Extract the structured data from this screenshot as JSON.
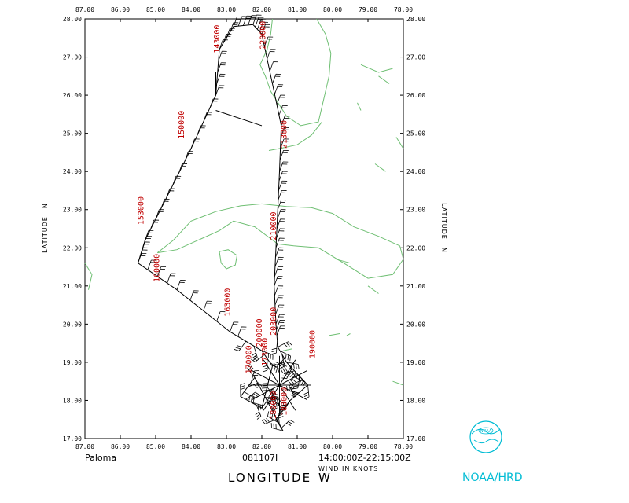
{
  "map": {
    "storm_name": "Paloma",
    "date_code": "081107I",
    "time_range": "14:00:00Z-22:15:00Z",
    "wind_units": "WIND IN KNOTS",
    "x_axis_label": "LONGITUDE",
    "x_axis_hemisphere": "W",
    "y_axis_label": "LATITUDE",
    "y_axis_hemisphere": "N",
    "agency": "NOAA/HRD",
    "logo_text": "NOAA",
    "lon_range": [
      87.0,
      78.0
    ],
    "lat_range": [
      17.0,
      28.0
    ],
    "lon_ticks": [
      "87.00",
      "86.00",
      "85.00",
      "84.00",
      "83.00",
      "82.00",
      "81.00",
      "80.00",
      "79.00",
      "78.00"
    ],
    "lat_ticks": [
      "17.00",
      "18.00",
      "19.00",
      "20.00",
      "21.00",
      "22.00",
      "23.00",
      "24.00",
      "25.00",
      "26.00",
      "27.00",
      "28.00"
    ],
    "coast_color": "#6fbf73",
    "track_color": "#000000",
    "time_label_color": "#c00000",
    "logo_color": "#00bcd4"
  },
  "chart_data": {
    "type": "scatter",
    "title": "",
    "xlabel": "LONGITUDE W",
    "ylabel": "LATITUDE N",
    "xlim": [
      87.0,
      78.0
    ],
    "ylim": [
      17.0,
      28.0
    ],
    "series": [
      {
        "points": [
          [
            82.25,
            27.85
          ],
          [
            82.0,
            27.6
          ],
          [
            81.7,
            26.3
          ],
          [
            81.45,
            25.2
          ],
          [
            81.5,
            24.0
          ],
          [
            81.55,
            23.0
          ],
          [
            81.6,
            22.0
          ],
          [
            81.65,
            21.0
          ],
          [
            81.6,
            20.0
          ],
          [
            81.55,
            19.4
          ],
          [
            81.3,
            19.0
          ],
          [
            81.0,
            18.7
          ],
          [
            80.7,
            18.4
          ],
          [
            81.2,
            18.0
          ],
          [
            81.6,
            17.5
          ],
          [
            81.4,
            17.2
          ],
          [
            82.2,
            18.6
          ],
          [
            82.6,
            18.1
          ],
          [
            82.0,
            17.8
          ],
          [
            81.7,
            18.9
          ],
          [
            82.0,
            19.3
          ],
          [
            82.9,
            19.8
          ],
          [
            84.4,
            20.9
          ],
          [
            85.5,
            21.6
          ],
          [
            85.3,
            22.2
          ],
          [
            84.7,
            23.3
          ],
          [
            84.0,
            24.6
          ],
          [
            83.3,
            26.0
          ],
          [
            83.2,
            27.2
          ],
          [
            82.8,
            27.8
          ],
          [
            82.25,
            27.85
          ]
        ]
      }
    ],
    "annotations": [
      {
        "text": "143000",
        "lon": 83.2,
        "lat": 27.1
      },
      {
        "text": "150000",
        "lon": 84.2,
        "lat": 24.85
      },
      {
        "text": "153000",
        "lon": 85.35,
        "lat": 22.6
      },
      {
        "text": "160000",
        "lon": 84.9,
        "lat": 21.1
      },
      {
        "text": "163000",
        "lon": 82.9,
        "lat": 20.2
      },
      {
        "text": "170000",
        "lon": 82.3,
        "lat": 18.7
      },
      {
        "text": "173000",
        "lon": 81.85,
        "lat": 18.9
      },
      {
        "text": "180000",
        "lon": 81.6,
        "lat": 17.5
      },
      {
        "text": "183000",
        "lon": 81.3,
        "lat": 17.6
      },
      {
        "text": "190000",
        "lon": 80.5,
        "lat": 19.1
      },
      {
        "text": "200000",
        "lon": 82.0,
        "lat": 19.4
      },
      {
        "text": "203000",
        "lon": 81.6,
        "lat": 19.7
      },
      {
        "text": "210000",
        "lon": 81.6,
        "lat": 22.2
      },
      {
        "text": "213000",
        "lon": 81.3,
        "lat": 24.6
      },
      {
        "text": "220000",
        "lon": 81.9,
        "lat": 27.2
      }
    ]
  }
}
